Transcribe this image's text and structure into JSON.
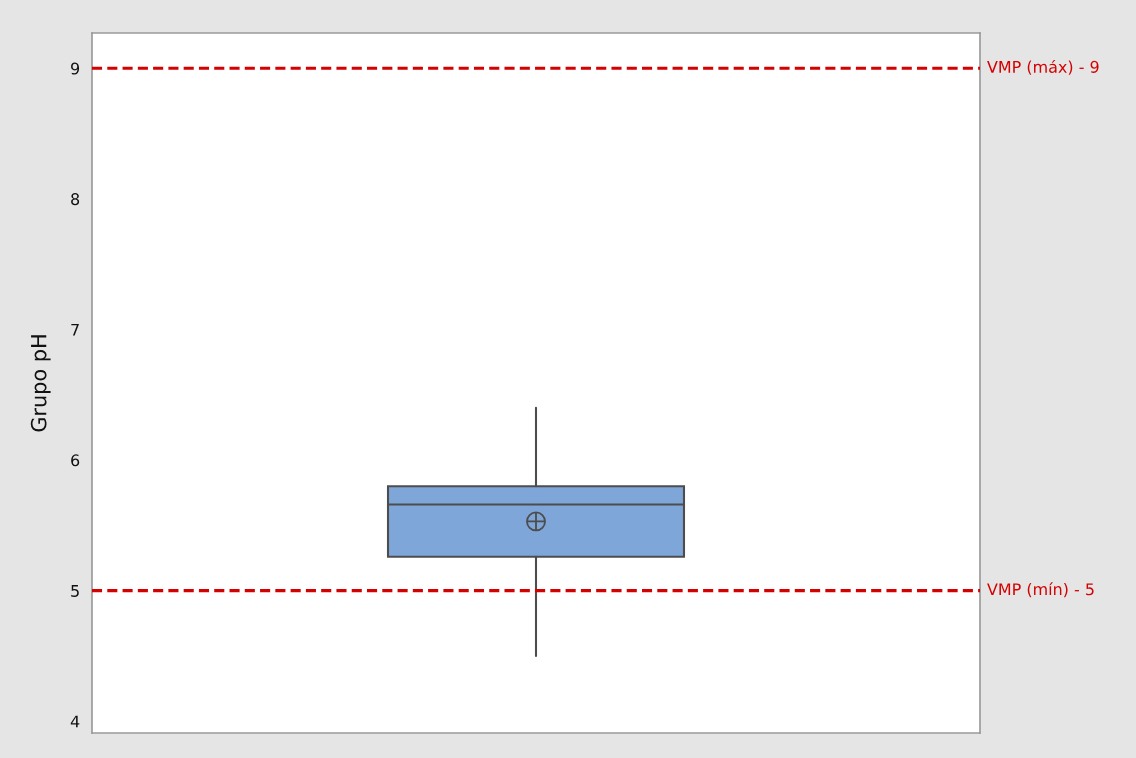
{
  "chart_data": {
    "type": "box",
    "ylabel": "Grupo pH",
    "categories": [
      null
    ],
    "series": [
      {
        "color": "#7ea6d8",
        "boxes": [
          {
            "low": 4.5,
            "q1": 5.26,
            "median": 5.66,
            "q3": 5.8,
            "high": 6.4,
            "mean": 5.53
          }
        ]
      }
    ],
    "ylim": [
      3.91,
      9.27
    ],
    "yticks": [
      4,
      5,
      6,
      7,
      8,
      9
    ],
    "ref_lines": [
      {
        "axis": "y",
        "value": 9,
        "label": "VMP (máx) - 9",
        "color": "#d50000",
        "line_style": "dashed"
      },
      {
        "axis": "y",
        "value": 5,
        "label": "VMP (mín) - 5",
        "color": "#d50000",
        "line_style": "dashed"
      }
    ],
    "grid": false,
    "tick_labels": "y"
  }
}
